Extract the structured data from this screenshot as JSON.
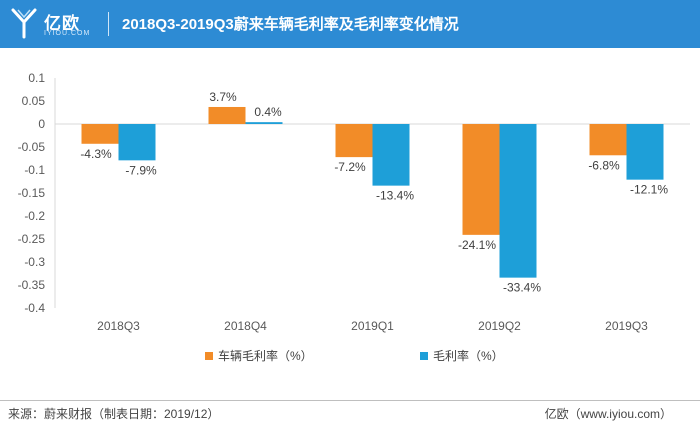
{
  "header": {
    "logo_text": "亿欧",
    "logo_sub": "IYIOU.COM",
    "title": "2018Q3-2019Q3蔚来车辆毛利率及毛利率变化情况",
    "background_color": "#2d8bd4"
  },
  "chart_data": {
    "type": "bar",
    "title": "2018Q3-2019Q3蔚来车辆毛利率及毛利率变化情况",
    "categories": [
      "2018Q3",
      "2018Q4",
      "2019Q1",
      "2019Q2",
      "2019Q3"
    ],
    "series": [
      {
        "name": "车辆毛利率（%）",
        "color": "#f28c28",
        "values": [
          -0.043,
          0.037,
          -0.072,
          -0.241,
          -0.068
        ],
        "labels": [
          "-4.3%",
          "3.7%",
          "-7.2%",
          "-24.1%",
          "-6.8%"
        ]
      },
      {
        "name": "毛利率（%）",
        "color": "#1e9fd8",
        "values": [
          -0.079,
          0.004,
          -0.134,
          -0.334,
          -0.121
        ],
        "labels": [
          "-7.9%",
          "0.4%",
          "-13.4%",
          "-33.4%",
          "-12.1%"
        ]
      }
    ],
    "ylim": [
      -0.4,
      0.1
    ],
    "yticks": [
      0.1,
      0.05,
      0,
      -0.05,
      -0.1,
      -0.15,
      -0.2,
      -0.25,
      -0.3,
      -0.35,
      -0.4
    ],
    "ytick_labels": [
      "0.1",
      "0.05",
      "0",
      "-0.05",
      "-0.1",
      "-0.15",
      "-0.2",
      "-0.25",
      "-0.3",
      "-0.35",
      "-0.4"
    ],
    "xlabel": "",
    "ylabel": "",
    "grid": false,
    "legend": "bottom"
  },
  "footer": {
    "source": "来源：蔚来财报（制表日期：2019/12）",
    "site": "亿欧（www.iyiou.com）"
  }
}
